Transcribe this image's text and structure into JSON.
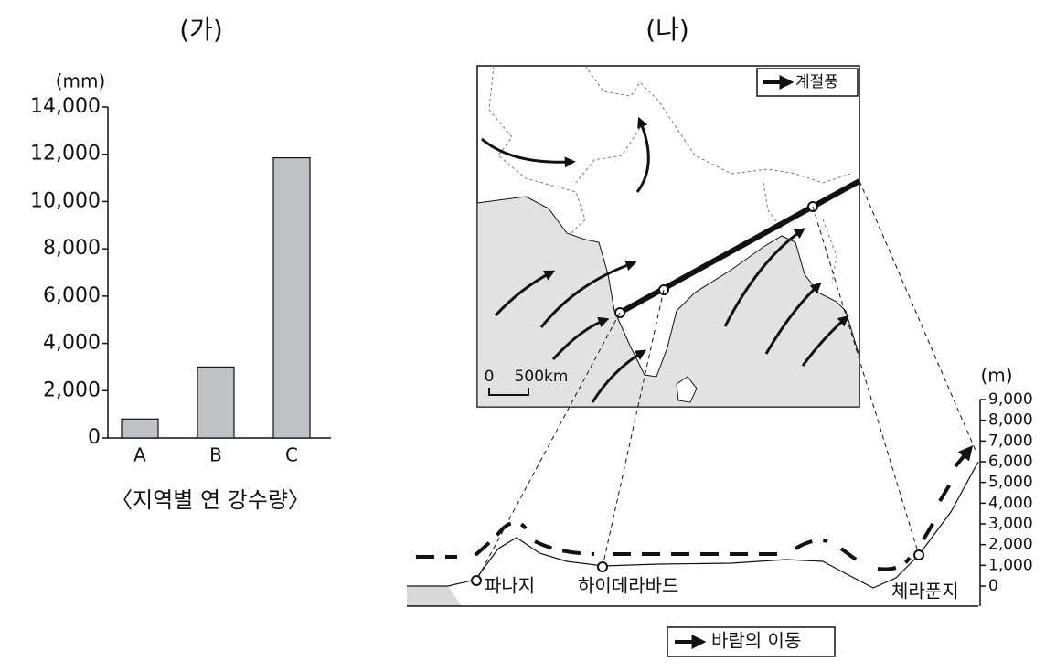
{
  "chart_data": [
    {
      "type": "bar",
      "title": "(가)",
      "unit": "(mm)",
      "caption": "〈지역별 연 강수량〉",
      "categories": [
        "A",
        "B",
        "C"
      ],
      "values": [
        800,
        3000,
        11850
      ],
      "color": "#c0c1c5",
      "ylim": [
        0,
        14000
      ],
      "yticks": [
        0,
        {
          "value": 2000,
          "label": "2,000"
        },
        {
          "value": 4000,
          "label": "4,000"
        },
        {
          "value": 6000,
          "label": "6,000"
        },
        {
          "value": 8000,
          "label": "8,000"
        },
        {
          "value": 10000,
          "label": "10,000"
        },
        {
          "value": 12000,
          "label": "12,000"
        },
        {
          "value": 14000,
          "label": "14,000"
        }
      ]
    },
    {
      "type": "profile",
      "title": "(나)",
      "unit": "(m)",
      "ylim": [
        0,
        9000
      ],
      "yticks": [
        0,
        {
          "value": 1000,
          "label": "1,000"
        },
        {
          "value": 2000,
          "label": "2,000"
        },
        {
          "value": 3000,
          "label": "3,000"
        },
        {
          "value": 4000,
          "label": "4,000"
        },
        {
          "value": 5000,
          "label": "5,000"
        },
        {
          "value": 6000,
          "label": "6,000"
        },
        {
          "value": 7000,
          "label": "7,000"
        },
        {
          "value": 8000,
          "label": "8,000"
        },
        {
          "value": 9000,
          "label": "9,000"
        }
      ],
      "places": [
        "파나지",
        "하이데라바드",
        "체라푼지"
      ],
      "map_legend": "계절풍",
      "profile_legend": "바람의 이동",
      "scale_labels": [
        "0",
        "500km"
      ]
    }
  ]
}
